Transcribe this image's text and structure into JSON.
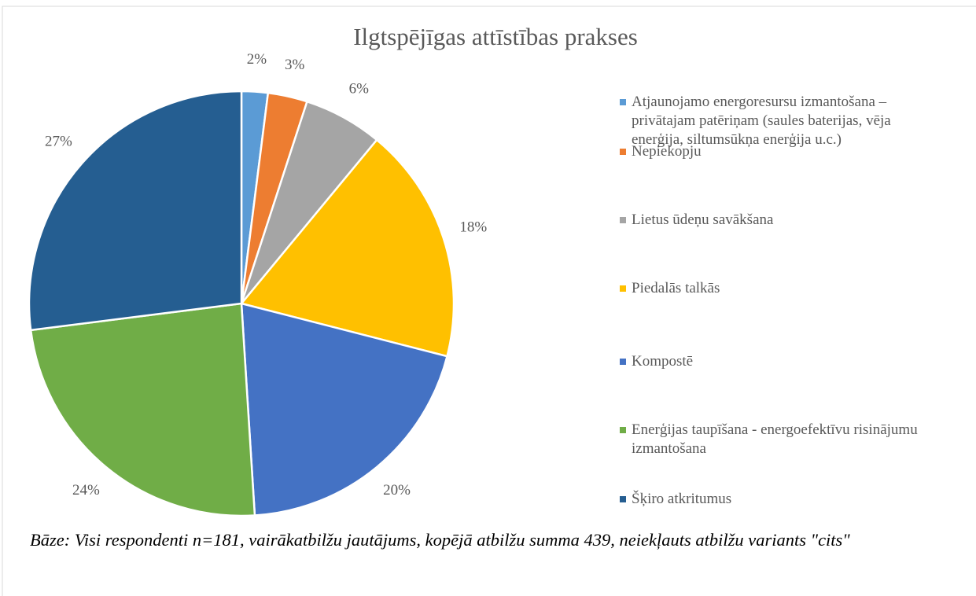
{
  "chart_data": {
    "type": "pie",
    "title": "Ilgtspējīgas attīstības prakses",
    "categories": [
      "Atjaunojamo energoresursu izmantošana – privātajam patēriņam (saules baterijas, vēja enerģija, siltumsūkņa enerģija u.c.)",
      "Nepiekopju",
      "Lietus ūdeņu savākšana",
      "Piedalās talkās",
      "Kompostē",
      "Enerģijas taupīšana - energoefektīvu risinājumu izmantošana",
      "Šķiro atkritumus"
    ],
    "values": [
      2,
      3,
      6,
      18,
      20,
      24,
      27
    ],
    "value_labels": [
      "2%",
      "3%",
      "6%",
      "18%",
      "20%",
      "24%",
      "27%"
    ],
    "colors": [
      "#5b9bd5",
      "#ed7d31",
      "#a5a5a5",
      "#ffc000",
      "#4472c4",
      "#70ad47",
      "#255e91"
    ],
    "legend": "right",
    "note": "Bāze: Visi respondenti n=181, vairākatbilžu jautājums, kopējā atbilžu summa 439, neiekļauts atbilžu variants \"cits\""
  }
}
